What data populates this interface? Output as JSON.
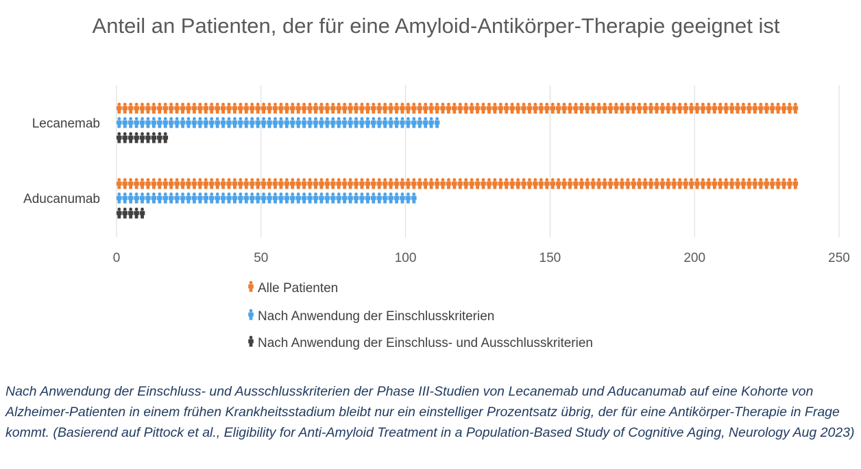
{
  "chart_data": {
    "type": "bar",
    "title": "Anteil an Patienten, der für eine Amyloid-Antikörper-Therapie geeignet ist",
    "categories": [
      "Lecanemab",
      "Aducanumab"
    ],
    "series": [
      {
        "name": "Alle Patienten",
        "color": "#ed7d31",
        "values": [
          237,
          237
        ]
      },
      {
        "name": "Nach Anwendung der Einschlusskriterien",
        "color": "#4da3e8",
        "values": [
          112,
          104
        ]
      },
      {
        "name": "Nach Anwendung der Einschluss- und Ausschlusskriterien",
        "color": "#404040",
        "values": [
          18,
          11
        ]
      }
    ],
    "xlim": [
      0,
      250
    ],
    "xticks": [
      "0",
      "50",
      "100",
      "150",
      "200",
      "250"
    ],
    "grid": true,
    "legend_position": "bottom",
    "marker": "person-icon"
  },
  "caption": "Nach Anwendung der Einschluss- und Ausschlusskriterien der Phase III-Studien von Lecanemab und Aducanumab auf eine Kohorte von Alzheimer-Patienten in einem frühen Krankheitsstadium bleibt nur ein einstelliger Prozentsatz übrig, der für eine Antikörper-Therapie in Frage kommt. (Basierend auf Pittock et al., Eligibility for Anti-Amyloid Treatment in a Population-Based Study of Cognitive Aging, Neurology Aug 2023)"
}
